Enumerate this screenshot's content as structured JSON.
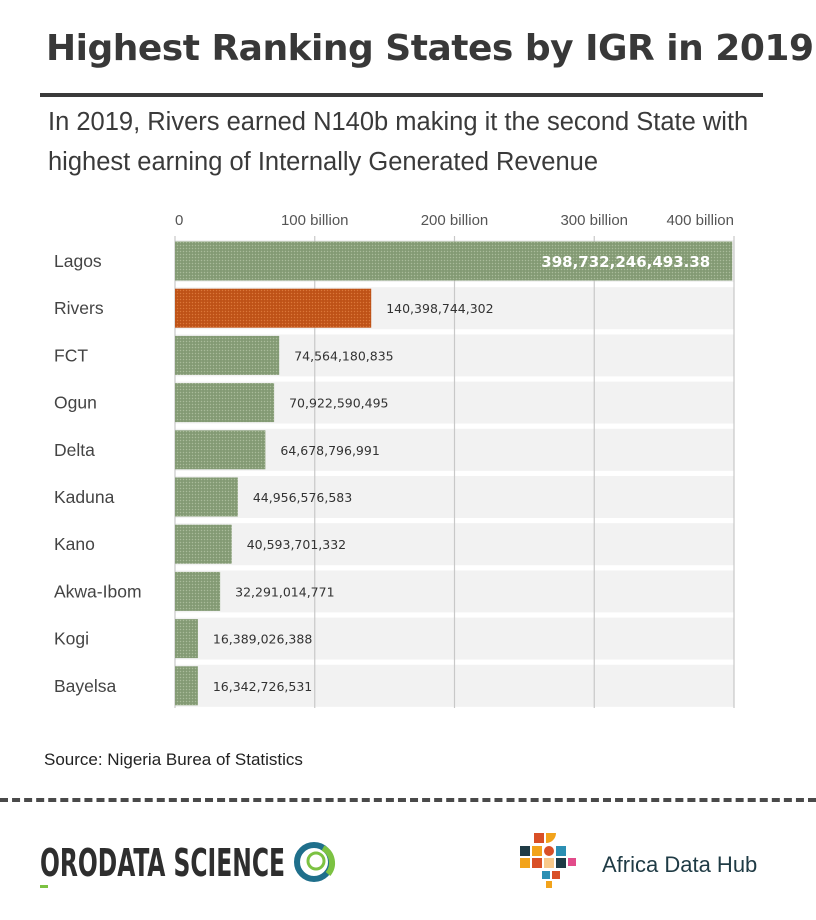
{
  "header": {
    "title": "Highest Ranking States by IGR in 2019",
    "subtitle": "In 2019, Rivers earned N140b making it the second State with highest earning of Internally Generated Revenue"
  },
  "chart_data": {
    "type": "bar",
    "orientation": "horizontal",
    "categories": [
      "Lagos",
      "Rivers",
      "FCT",
      "Ogun",
      "Delta",
      "Kaduna",
      "Kano",
      "Akwa-Ibom",
      "Kogi",
      "Bayelsa"
    ],
    "values": [
      398732246493.38,
      140398744302,
      74564180835,
      70922590495,
      64678796991,
      44956576583,
      40593701332,
      32291014771,
      16389026388,
      16342726531
    ],
    "value_labels": [
      "398,732,246,493.38",
      "140,398,744,302",
      "74,564,180,835",
      "70,922,590,495",
      "64,678,796,991",
      "44,956,576,583",
      "40,593,701,332",
      "32,291,014,771",
      "16,389,026,388",
      "16,342,726,531"
    ],
    "x_ticks": [
      0,
      100000000000,
      200000000000,
      300000000000,
      400000000000
    ],
    "x_tick_labels": [
      "0",
      "100 billion",
      "200 billion",
      "300 billion",
      "400 billion"
    ],
    "xlim": [
      0,
      400000000000
    ],
    "axis_position": "top",
    "grid": true,
    "highlight_category": "Rivers",
    "colors": {
      "bar": "#8aa07a",
      "bar_highlight": "#c4571a",
      "row_background": "#f2f2f2",
      "gridline": "#c8c8c8"
    }
  },
  "footer": {
    "source": "Source: Nigeria Burea of Statistics",
    "logos": {
      "orodata": {
        "text": "ORODATA SCIENCE",
        "tagline": ""
      },
      "africa_data_hub": {
        "text": "Africa Data Hub"
      }
    }
  }
}
